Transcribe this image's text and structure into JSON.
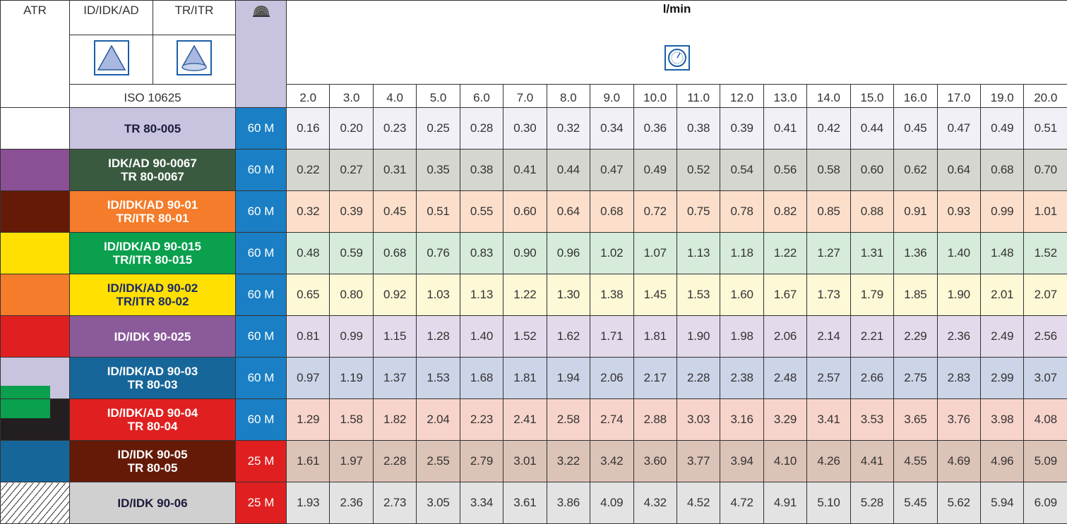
{
  "header": {
    "atr": "ATR",
    "col1": "ID/IDK/AD",
    "col2": "TR/ITR",
    "standard": "ISO 10625",
    "unit": "l/min",
    "flows": [
      "2.0",
      "3.0",
      "4.0",
      "5.0",
      "6.0",
      "7.0",
      "8.0",
      "9.0",
      "10.0",
      "11.0",
      "12.0",
      "13.0",
      "14.0",
      "15.0",
      "16.0",
      "17.0",
      "19.0",
      "20.0"
    ]
  },
  "rows": [
    {
      "name": [
        "TR 80-005"
      ],
      "filter": "60 M",
      "values": [
        "0.16",
        "0.20",
        "0.23",
        "0.25",
        "0.28",
        "0.30",
        "0.32",
        "0.34",
        "0.36",
        "0.38",
        "0.39",
        "0.41",
        "0.42",
        "0.44",
        "0.45",
        "0.47",
        "0.49",
        "0.51"
      ]
    },
    {
      "name": [
        "IDK/AD 90-0067",
        "TR 80-0067"
      ],
      "filter": "60 M",
      "values": [
        "0.22",
        "0.27",
        "0.31",
        "0.35",
        "0.38",
        "0.41",
        "0.44",
        "0.47",
        "0.49",
        "0.52",
        "0.54",
        "0.56",
        "0.58",
        "0.60",
        "0.62",
        "0.64",
        "0.68",
        "0.70"
      ]
    },
    {
      "name": [
        "ID/IDK/AD 90-01",
        "TR/ITR 80-01"
      ],
      "filter": "60 M",
      "values": [
        "0.32",
        "0.39",
        "0.45",
        "0.51",
        "0.55",
        "0.60",
        "0.64",
        "0.68",
        "0.72",
        "0.75",
        "0.78",
        "0.82",
        "0.85",
        "0.88",
        "0.91",
        "0.93",
        "0.99",
        "1.01"
      ]
    },
    {
      "name": [
        "ID/IDK/AD 90-015",
        "TR/ITR 80-015"
      ],
      "filter": "60 M",
      "values": [
        "0.48",
        "0.59",
        "0.68",
        "0.76",
        "0.83",
        "0.90",
        "0.96",
        "1.02",
        "1.07",
        "1.13",
        "1.18",
        "1.22",
        "1.27",
        "1.31",
        "1.36",
        "1.40",
        "1.48",
        "1.52"
      ]
    },
    {
      "name": [
        "ID/IDK/AD 90-02",
        "TR/ITR 80-02"
      ],
      "filter": "60 M",
      "values": [
        "0.65",
        "0.80",
        "0.92",
        "1.03",
        "1.13",
        "1.22",
        "1.30",
        "1.38",
        "1.45",
        "1.53",
        "1.60",
        "1.67",
        "1.73",
        "1.79",
        "1.85",
        "1.90",
        "2.01",
        "2.07"
      ]
    },
    {
      "name": [
        "ID/IDK 90-025"
      ],
      "filter": "60 M",
      "values": [
        "0.81",
        "0.99",
        "1.15",
        "1.28",
        "1.40",
        "1.52",
        "1.62",
        "1.71",
        "1.81",
        "1.90",
        "1.98",
        "2.06",
        "2.14",
        "2.21",
        "2.29",
        "2.36",
        "2.49",
        "2.56"
      ]
    },
    {
      "name": [
        "ID/IDK/AD 90-03",
        "TR 80-03"
      ],
      "filter": "60 M",
      "values": [
        "0.97",
        "1.19",
        "1.37",
        "1.53",
        "1.68",
        "1.81",
        "1.94",
        "2.06",
        "2.17",
        "2.28",
        "2.38",
        "2.48",
        "2.57",
        "2.66",
        "2.75",
        "2.83",
        "2.99",
        "3.07"
      ]
    },
    {
      "name": [
        "ID/IDK/AD 90-04",
        "TR 80-04"
      ],
      "filter": "60 M",
      "values": [
        "1.29",
        "1.58",
        "1.82",
        "2.04",
        "2.23",
        "2.41",
        "2.58",
        "2.74",
        "2.88",
        "3.03",
        "3.16",
        "3.29",
        "3.41",
        "3.53",
        "3.65",
        "3.76",
        "3.98",
        "4.08"
      ]
    },
    {
      "name": [
        "ID/IDK 90-05",
        "TR 80-05"
      ],
      "filter": "25 M",
      "values": [
        "1.61",
        "1.97",
        "2.28",
        "2.55",
        "2.79",
        "3.01",
        "3.22",
        "3.42",
        "3.60",
        "3.77",
        "3.94",
        "4.10",
        "4.26",
        "4.41",
        "4.55",
        "4.69",
        "4.96",
        "5.09"
      ]
    },
    {
      "name": [
        "ID/IDK 90-06"
      ],
      "filter": "25 M",
      "values": [
        "1.93",
        "2.36",
        "2.73",
        "3.05",
        "3.34",
        "3.61",
        "3.86",
        "4.09",
        "4.32",
        "4.52",
        "4.72",
        "4.91",
        "5.10",
        "5.28",
        "5.45",
        "5.62",
        "5.94",
        "6.09"
      ]
    }
  ]
}
